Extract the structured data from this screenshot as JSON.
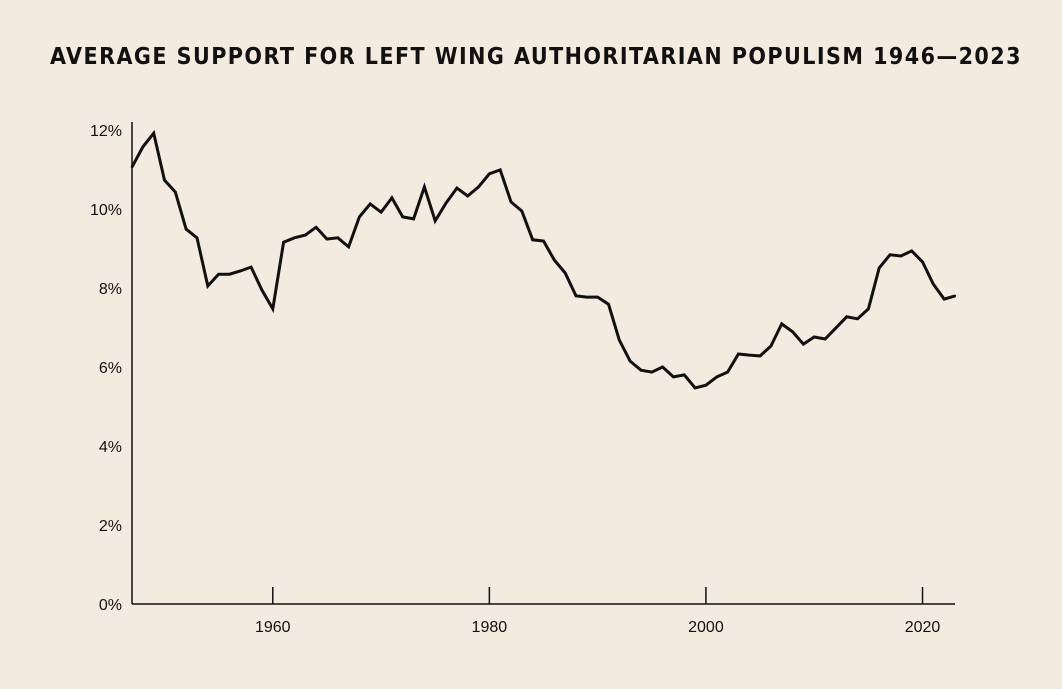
{
  "chart_data": {
    "type": "line",
    "title": "AVERAGE SUPPORT FOR LEFT WING AUTHORITARIAN POPULISM 1946—2023",
    "xlabel": "",
    "ylabel": "",
    "xlim": [
      1947,
      2023
    ],
    "ylim": [
      0,
      12
    ],
    "grid": false,
    "x_ticks": [
      1960,
      1980,
      2000,
      2020
    ],
    "x_tick_labels": [
      "1960",
      "1980",
      "2000",
      "2020"
    ],
    "y_ticks": [
      0,
      2,
      4,
      6,
      8,
      10,
      12
    ],
    "y_tick_labels": [
      "0%",
      "2%",
      "4%",
      "6%",
      "8%",
      "10%",
      "12%"
    ],
    "line_color": "#111111",
    "background": "#f3ebdf",
    "x": [
      1947,
      1948,
      1949,
      1950,
      1951,
      1952,
      1953,
      1954,
      1955,
      1956,
      1957,
      1958,
      1959,
      1960,
      1961,
      1962,
      1963,
      1964,
      1965,
      1966,
      1967,
      1968,
      1969,
      1970,
      1971,
      1972,
      1973,
      1974,
      1975,
      1976,
      1977,
      1978,
      1979,
      1980,
      1981,
      1982,
      1983,
      1984,
      1985,
      1986,
      1987,
      1988,
      1989,
      1990,
      1991,
      1992,
      1993,
      1994,
      1995,
      1996,
      1997,
      1998,
      1999,
      2000,
      2001,
      2002,
      2003,
      2004,
      2005,
      2006,
      2007,
      2008,
      2009,
      2010,
      2011,
      2012,
      2013,
      2014,
      2015,
      2016,
      2017,
      2018,
      2019,
      2020,
      2021,
      2022,
      2023
    ],
    "values": [
      11.06,
      11.57,
      11.92,
      10.73,
      10.43,
      9.49,
      9.27,
      8.05,
      8.35,
      8.35,
      8.43,
      8.53,
      7.95,
      7.47,
      9.16,
      9.27,
      9.34,
      9.54,
      9.24,
      9.27,
      9.04,
      9.8,
      10.13,
      9.92,
      10.28,
      9.8,
      9.75,
      10.56,
      9.7,
      10.15,
      10.53,
      10.33,
      10.56,
      10.89,
      10.99,
      10.18,
      9.95,
      9.22,
      9.19,
      8.71,
      8.38,
      7.8,
      7.77,
      7.77,
      7.59,
      6.68,
      6.15,
      5.92,
      5.87,
      6.0,
      5.75,
      5.8,
      5.47,
      5.54,
      5.75,
      5.87,
      6.33,
      6.3,
      6.28,
      6.53,
      7.09,
      6.89,
      6.58,
      6.76,
      6.71,
      6.99,
      7.27,
      7.22,
      7.47,
      8.51,
      8.84,
      8.81,
      8.94,
      8.66,
      8.1,
      7.72,
      7.8
    ]
  }
}
